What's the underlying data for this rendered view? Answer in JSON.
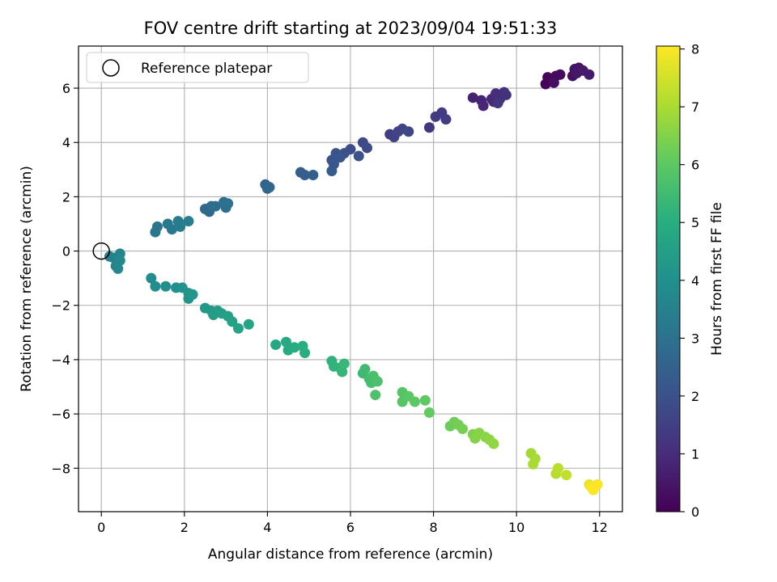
{
  "chart_data": {
    "type": "scatter",
    "title": "FOV centre drift starting at 2023/09/04 19:51:33",
    "xlabel": "Angular distance from reference (arcmin)",
    "ylabel": "Rotation from reference (arcmin)",
    "xlim": [
      -0.55,
      12.55
    ],
    "ylim": [
      -9.6,
      7.55
    ],
    "xticks": [
      0,
      2,
      4,
      6,
      8,
      10,
      12
    ],
    "yticks": [
      -8,
      -6,
      -4,
      -2,
      0,
      2,
      4,
      6
    ],
    "grid": true,
    "legend": {
      "placement": "upper-left",
      "label": "Reference platepar"
    },
    "reference_point": [
      0,
      0
    ],
    "colorbar": {
      "label": "Hours from first FF file",
      "range": [
        0,
        8.05
      ],
      "ticks": [
        0,
        1,
        2,
        3,
        4,
        5,
        6,
        7,
        8
      ],
      "colormap": "viridis"
    },
    "points": [
      [
        10.7,
        6.15,
        0.05
      ],
      [
        10.75,
        6.4,
        0.1
      ],
      [
        10.85,
        6.3,
        0.15
      ],
      [
        10.95,
        6.45,
        0.2
      ],
      [
        11.05,
        6.5,
        0.25
      ],
      [
        10.9,
        6.2,
        0.3
      ],
      [
        11.35,
        6.45,
        0.35
      ],
      [
        11.4,
        6.7,
        0.4
      ],
      [
        11.5,
        6.75,
        0.45
      ],
      [
        11.45,
        6.55,
        0.5
      ],
      [
        11.6,
        6.65,
        0.55
      ],
      [
        11.75,
        6.5,
        0.6
      ],
      [
        8.95,
        5.65,
        0.75
      ],
      [
        9.15,
        5.55,
        0.8
      ],
      [
        9.2,
        5.35,
        0.85
      ],
      [
        9.4,
        5.6,
        0.9
      ],
      [
        9.45,
        5.5,
        0.95
      ],
      [
        9.5,
        5.8,
        1.0
      ],
      [
        9.6,
        5.6,
        1.05
      ],
      [
        9.7,
        5.85,
        1.1
      ],
      [
        9.75,
        5.75,
        1.15
      ],
      [
        9.55,
        5.45,
        1.2
      ],
      [
        7.9,
        4.55,
        1.3
      ],
      [
        8.05,
        4.95,
        1.35
      ],
      [
        8.2,
        5.1,
        1.4
      ],
      [
        8.3,
        4.85,
        1.45
      ],
      [
        6.95,
        4.3,
        1.5
      ],
      [
        7.05,
        4.2,
        1.55
      ],
      [
        7.15,
        4.4,
        1.6
      ],
      [
        7.25,
        4.5,
        1.65
      ],
      [
        7.4,
        4.4,
        1.7
      ],
      [
        6.3,
        4.0,
        1.8
      ],
      [
        6.4,
        3.8,
        1.85
      ],
      [
        6.0,
        3.75,
        1.9
      ],
      [
        5.85,
        3.6,
        1.95
      ],
      [
        6.2,
        3.5,
        2.0
      ],
      [
        5.55,
        3.35,
        2.05
      ],
      [
        5.65,
        3.6,
        2.1
      ],
      [
        5.75,
        3.45,
        2.15
      ],
      [
        5.6,
        3.2,
        2.2
      ],
      [
        5.55,
        2.95,
        2.25
      ],
      [
        4.8,
        2.9,
        2.35
      ],
      [
        4.9,
        2.8,
        2.4
      ],
      [
        5.1,
        2.8,
        2.45
      ],
      [
        3.95,
        2.45,
        2.55
      ],
      [
        4.0,
        2.3,
        2.6
      ],
      [
        4.05,
        2.35,
        2.65
      ],
      [
        2.5,
        1.55,
        2.7
      ],
      [
        2.6,
        1.45,
        2.75
      ],
      [
        2.65,
        1.65,
        2.8
      ],
      [
        2.75,
        1.65,
        2.85
      ],
      [
        2.95,
        1.8,
        2.9
      ],
      [
        3.0,
        1.6,
        2.95
      ],
      [
        3.05,
        1.75,
        3.0
      ],
      [
        1.3,
        0.7,
        3.1
      ],
      [
        1.35,
        0.9,
        3.15
      ],
      [
        1.6,
        1.0,
        3.2
      ],
      [
        1.7,
        0.8,
        3.25
      ],
      [
        1.85,
        1.1,
        3.3
      ],
      [
        1.9,
        0.9,
        3.35
      ],
      [
        2.1,
        1.1,
        3.4
      ],
      [
        0.2,
        -0.2,
        3.5
      ],
      [
        0.3,
        -0.25,
        3.55
      ],
      [
        0.35,
        -0.55,
        3.6
      ],
      [
        0.45,
        -0.1,
        3.65
      ],
      [
        0.4,
        -0.65,
        3.7
      ],
      [
        0.45,
        -0.35,
        3.75
      ],
      [
        1.2,
        -1.0,
        3.85
      ],
      [
        1.3,
        -1.3,
        3.9
      ],
      [
        1.55,
        -1.3,
        3.95
      ],
      [
        1.8,
        -1.35,
        4.0
      ],
      [
        1.95,
        -1.35,
        4.05
      ],
      [
        2.1,
        -1.55,
        4.1
      ],
      [
        2.1,
        -1.75,
        4.15
      ],
      [
        2.2,
        -1.6,
        4.2
      ],
      [
        2.5,
        -2.1,
        4.3
      ],
      [
        2.65,
        -2.2,
        4.35
      ],
      [
        2.7,
        -2.35,
        4.4
      ],
      [
        2.8,
        -2.2,
        4.45
      ],
      [
        2.9,
        -2.3,
        4.5
      ],
      [
        3.05,
        -2.4,
        4.55
      ],
      [
        3.15,
        -2.6,
        4.6
      ],
      [
        3.3,
        -2.85,
        4.65
      ],
      [
        3.55,
        -2.7,
        4.7
      ],
      [
        4.2,
        -3.45,
        4.8
      ],
      [
        4.45,
        -3.35,
        4.85
      ],
      [
        4.5,
        -3.65,
        4.9
      ],
      [
        4.65,
        -3.55,
        4.95
      ],
      [
        4.85,
        -3.5,
        5.0
      ],
      [
        4.9,
        -3.75,
        5.05
      ],
      [
        5.55,
        -4.05,
        5.15
      ],
      [
        5.6,
        -4.25,
        5.2
      ],
      [
        5.75,
        -4.3,
        5.25
      ],
      [
        5.8,
        -4.45,
        5.3
      ],
      [
        5.85,
        -4.15,
        5.35
      ],
      [
        6.3,
        -4.5,
        5.45
      ],
      [
        6.35,
        -4.35,
        5.5
      ],
      [
        6.45,
        -4.7,
        5.55
      ],
      [
        6.5,
        -4.85,
        5.6
      ],
      [
        6.55,
        -4.6,
        5.65
      ],
      [
        6.65,
        -4.8,
        5.7
      ],
      [
        6.6,
        -5.3,
        5.75
      ],
      [
        7.25,
        -5.2,
        5.85
      ],
      [
        7.25,
        -5.55,
        5.9
      ],
      [
        7.4,
        -5.35,
        5.95
      ],
      [
        7.55,
        -5.55,
        6.0
      ],
      [
        7.8,
        -5.5,
        6.05
      ],
      [
        7.9,
        -5.95,
        6.1
      ],
      [
        8.4,
        -6.45,
        6.2
      ],
      [
        8.5,
        -6.3,
        6.25
      ],
      [
        8.6,
        -6.4,
        6.3
      ],
      [
        8.7,
        -6.55,
        6.35
      ],
      [
        8.95,
        -6.75,
        6.45
      ],
      [
        9.0,
        -6.9,
        6.5
      ],
      [
        9.1,
        -6.7,
        6.55
      ],
      [
        9.25,
        -6.85,
        6.6
      ],
      [
        9.35,
        -6.95,
        6.65
      ],
      [
        9.45,
        -7.1,
        6.7
      ],
      [
        10.35,
        -7.45,
        6.9
      ],
      [
        10.45,
        -7.65,
        6.95
      ],
      [
        10.4,
        -7.85,
        7.0
      ],
      [
        10.95,
        -8.2,
        7.15
      ],
      [
        11.0,
        -8.0,
        7.2
      ],
      [
        11.2,
        -8.25,
        7.3
      ],
      [
        11.75,
        -8.6,
        7.8
      ],
      [
        11.85,
        -8.75,
        7.85
      ],
      [
        11.9,
        -8.65,
        7.9
      ],
      [
        11.8,
        -8.7,
        7.95
      ],
      [
        11.95,
        -8.6,
        8.0
      ],
      [
        11.85,
        -8.8,
        8.05
      ]
    ]
  }
}
